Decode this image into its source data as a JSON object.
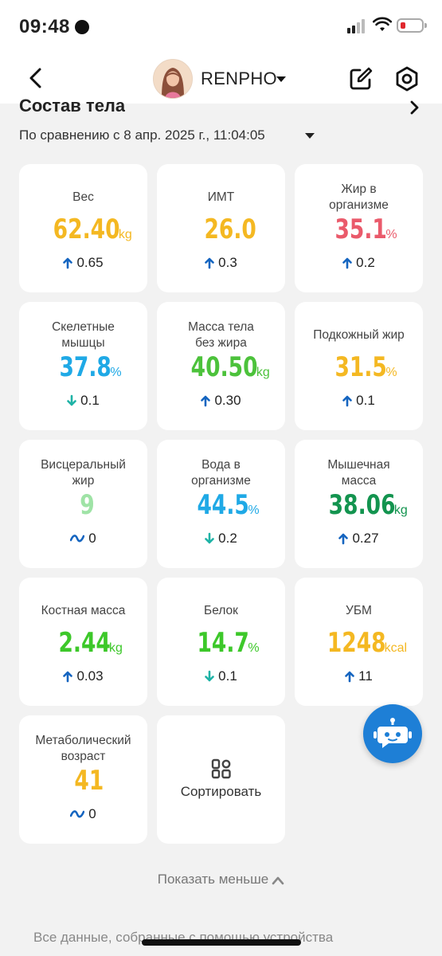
{
  "status_bar": {
    "time": "09:48"
  },
  "header": {
    "profile_name": "RENPHO"
  },
  "section": {
    "title": "Состав тела",
    "comparison": "По сравнению с 8 апр. 2025 г., 11:04:05"
  },
  "metrics": [
    {
      "label": [
        "Вес"
      ],
      "value": "62.40",
      "unit": "kg",
      "color": "#f4b822",
      "trend": "up",
      "delta": "0.65"
    },
    {
      "label": [
        "ИМТ"
      ],
      "value": "26.0",
      "unit": "",
      "color": "#f4b822",
      "trend": "up",
      "delta": "0.3"
    },
    {
      "label": [
        "Жир в",
        "организме"
      ],
      "value": "35.1",
      "unit": "%",
      "color": "#ea5a6b",
      "trend": "up",
      "delta": "0.2"
    },
    {
      "label": [
        "Скелетные",
        "мышцы"
      ],
      "value": "37.8",
      "unit": "%",
      "color": "#1fa9e6",
      "trend": "down",
      "delta": "0.1"
    },
    {
      "label": [
        "Масса тела",
        "без жира"
      ],
      "value": "40.50",
      "unit": "kg",
      "color": "#4cc23b",
      "trend": "up",
      "delta": "0.30"
    },
    {
      "label": [
        "Подкожный жир"
      ],
      "value": "31.5",
      "unit": "%",
      "color": "#f4b822",
      "trend": "up",
      "delta": "0.1"
    },
    {
      "label": [
        "Висцеральный",
        "жир"
      ],
      "value": "9",
      "unit": "",
      "color": "#9fe3a6",
      "trend": "flat",
      "delta": "0"
    },
    {
      "label": [
        "Вода в",
        "организме"
      ],
      "value": "44.5",
      "unit": "%",
      "color": "#1fa9e6",
      "trend": "down",
      "delta": "0.2"
    },
    {
      "label": [
        "Мышечная",
        "масса"
      ],
      "value": "38.06",
      "unit": "kg",
      "color": "#13944f",
      "trend": "up",
      "delta": "0.27"
    },
    {
      "label": [
        "Костная масса"
      ],
      "value": "2.44",
      "unit": "kg",
      "color": "#3dc82a",
      "trend": "up",
      "delta": "0.03"
    },
    {
      "label": [
        "Белок"
      ],
      "value": "14.7",
      "unit": "%",
      "color": "#3dc82a",
      "trend": "down",
      "delta": "0.1"
    },
    {
      "label": [
        "УБМ"
      ],
      "value": "1248",
      "unit": "kcal",
      "color": "#f4b822",
      "trend": "up",
      "delta": "11"
    },
    {
      "label": [
        "Метаболический",
        "возраст"
      ],
      "value": "41",
      "unit": "",
      "color": "#f4b822",
      "trend": "flat",
      "delta": "0"
    }
  ],
  "sort_button": {
    "label": "Сортировать"
  },
  "show_less": {
    "label": "Показать меньше"
  },
  "footer": {
    "text": "Все данные, собранные с помощью устройства"
  },
  "trend_colors": {
    "up": "#1565c0",
    "down": "#1fb3a6",
    "flat": "#1565c0"
  }
}
